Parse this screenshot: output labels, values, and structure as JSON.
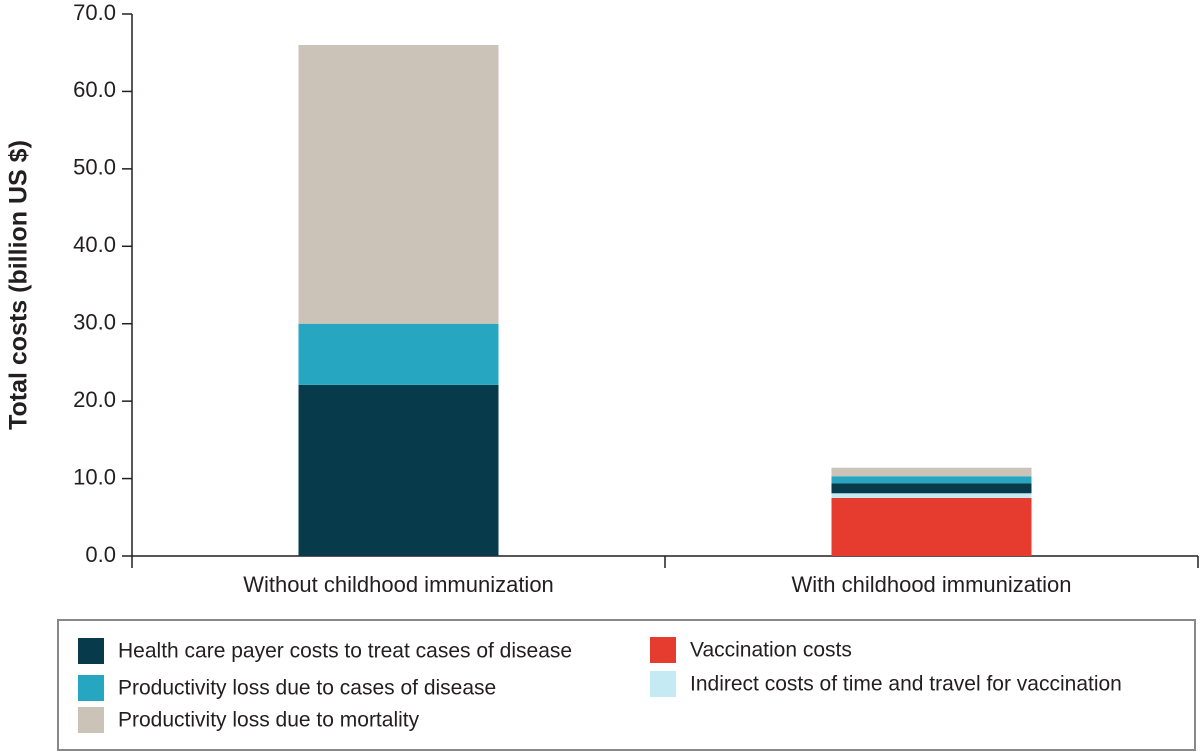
{
  "chart_data": {
    "type": "stacked_bar",
    "ylabel": "Total costs (billion US $)",
    "categories": [
      "Without childhood immunization",
      "With childhood immunization"
    ],
    "series": [
      {
        "name": "Vaccination costs",
        "color": "#e63c2f",
        "values": [
          0,
          7.5
        ]
      },
      {
        "name": "Indirect costs of time and travel for vaccination",
        "color": "#c5eaf3",
        "values": [
          0,
          0.6
        ]
      },
      {
        "name": "Health care payer costs to treat cases of disease",
        "color": "#073b4c",
        "values": [
          22.1,
          1.3
        ]
      },
      {
        "name": "Productivity loss due to cases of disease",
        "color": "#27a6c1",
        "values": [
          7.9,
          0.9
        ]
      },
      {
        "name": "Productivity loss due to mortality",
        "color": "#cbc2b8",
        "values": [
          36.0,
          1.1
        ]
      }
    ],
    "ylim": [
      0,
      70
    ],
    "yticks": [
      {
        "value": 0,
        "label": "0.0"
      },
      {
        "value": 10,
        "label": "10.0"
      },
      {
        "value": 20,
        "label": "20.0"
      },
      {
        "value": 30,
        "label": "30.0"
      },
      {
        "value": 40,
        "label": "40.0"
      },
      {
        "value": 50,
        "label": "50.0"
      },
      {
        "value": 60,
        "label": "60.0"
      },
      {
        "value": 70,
        "label": "70.0"
      }
    ]
  }
}
